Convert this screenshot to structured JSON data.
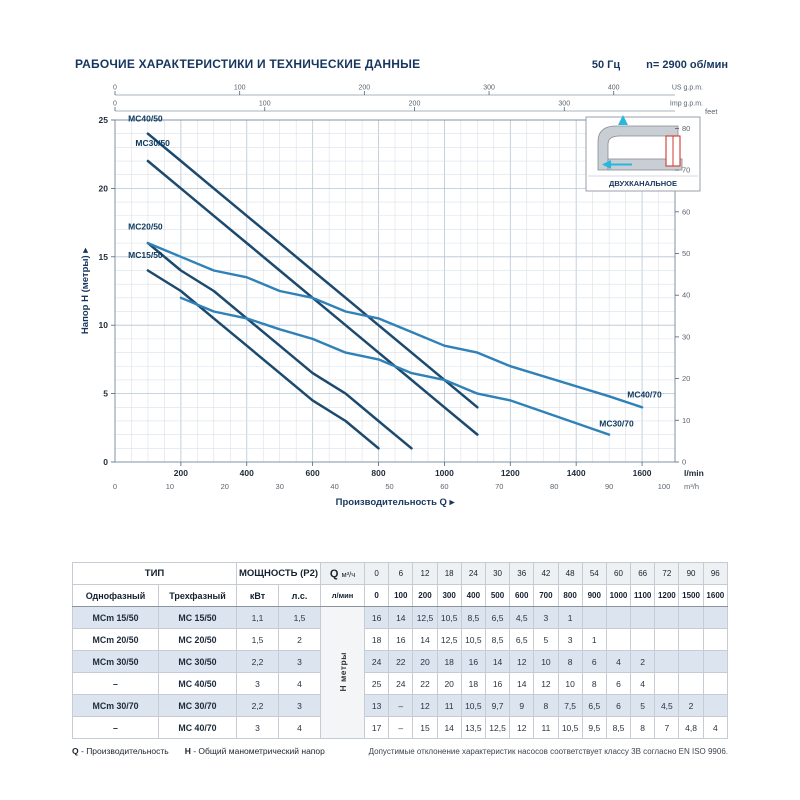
{
  "header": {
    "title": "РАБОЧИЕ ХАРАКТЕРИСТИКИ И ТЕХНИЧЕСКИЕ ДАННЫЕ",
    "frequency": "50 Гц",
    "speed": "n= 2900 об/мин"
  },
  "inset": {
    "label": "ДВУХКАНАЛЬНОЕ"
  },
  "chart_data": {
    "type": "line",
    "x_axis": {
      "label": "Производительность Q  ▸",
      "primary_unit": "l/min",
      "primary_ticks": [
        200,
        400,
        600,
        800,
        1000,
        1200,
        1400,
        1600
      ],
      "primary_max": 1700,
      "secondary_unit": "m³/h",
      "secondary_ticks": [
        0,
        10,
        20,
        30,
        40,
        50,
        60,
        70,
        80,
        90,
        100
      ],
      "us_gpm_unit": "US g.p.m.",
      "us_gpm_ticks": [
        0,
        100,
        200,
        300,
        400
      ],
      "imp_gpm_unit": "Imp g.p.m.",
      "imp_gpm_ticks": [
        0,
        100,
        200,
        300
      ]
    },
    "y_axis": {
      "label": "Напор H (метры)  ▸",
      "ticks": [
        0,
        5,
        10,
        15,
        20,
        25
      ],
      "max": 25,
      "right_unit": "feet",
      "right_ticks": [
        0,
        10,
        20,
        30,
        40,
        50,
        60,
        70,
        80
      ]
    },
    "series": [
      {
        "name": "MC40/50",
        "color": "#1c4a6e",
        "width": 2.5,
        "label": {
          "x": 40,
          "y": 24.9,
          "anchor": "start"
        },
        "points": [
          [
            100,
            24
          ],
          [
            200,
            22
          ],
          [
            300,
            20
          ],
          [
            400,
            18
          ],
          [
            500,
            16
          ],
          [
            600,
            14
          ],
          [
            700,
            12
          ],
          [
            800,
            10
          ],
          [
            900,
            8
          ],
          [
            1000,
            6
          ],
          [
            1100,
            4
          ]
        ]
      },
      {
        "name": "MC30/50",
        "color": "#1c4a6e",
        "width": 2.5,
        "label": {
          "x": 62,
          "y": 23.1,
          "anchor": "start"
        },
        "points": [
          [
            100,
            22
          ],
          [
            200,
            20
          ],
          [
            300,
            18
          ],
          [
            400,
            16
          ],
          [
            500,
            14
          ],
          [
            600,
            12
          ],
          [
            700,
            10
          ],
          [
            800,
            8
          ],
          [
            900,
            6
          ],
          [
            1000,
            4
          ],
          [
            1100,
            2
          ]
        ]
      },
      {
        "name": "MC20/50",
        "color": "#1c4a6e",
        "width": 2.5,
        "label": {
          "x": 40,
          "y": 17.0,
          "anchor": "start"
        },
        "points": [
          [
            100,
            16
          ],
          [
            200,
            14
          ],
          [
            300,
            12.5
          ],
          [
            400,
            10.5
          ],
          [
            500,
            8.5
          ],
          [
            600,
            6.5
          ],
          [
            700,
            5
          ],
          [
            800,
            3
          ],
          [
            900,
            1
          ]
        ]
      },
      {
        "name": "MC15/50",
        "color": "#1c4a6e",
        "width": 2.5,
        "label": {
          "x": 40,
          "y": 14.9,
          "anchor": "start"
        },
        "points": [
          [
            100,
            14
          ],
          [
            200,
            12.5
          ],
          [
            300,
            10.5
          ],
          [
            400,
            8.5
          ],
          [
            500,
            6.5
          ],
          [
            600,
            4.5
          ],
          [
            700,
            3
          ],
          [
            800,
            1
          ]
        ]
      },
      {
        "name": "MC40/70",
        "color": "#2f81b7",
        "width": 2.4,
        "label": {
          "x": 1555,
          "y": 4.7,
          "anchor": "start"
        },
        "points": [
          [
            100,
            16
          ],
          [
            200,
            15
          ],
          [
            300,
            14
          ],
          [
            400,
            13.5
          ],
          [
            500,
            12.5
          ],
          [
            600,
            12
          ],
          [
            700,
            11
          ],
          [
            800,
            10.5
          ],
          [
            900,
            9.5
          ],
          [
            1000,
            8.5
          ],
          [
            1100,
            8
          ],
          [
            1200,
            7
          ],
          [
            1500,
            4.8
          ],
          [
            1600,
            4
          ]
        ]
      },
      {
        "name": "MC30/70",
        "color": "#2f81b7",
        "width": 2.4,
        "label": {
          "x": 1470,
          "y": 2.6,
          "anchor": "start"
        },
        "points": [
          [
            200,
            12
          ],
          [
            300,
            11
          ],
          [
            400,
            10.5
          ],
          [
            500,
            9.7
          ],
          [
            600,
            9
          ],
          [
            700,
            8
          ],
          [
            800,
            7.5
          ],
          [
            900,
            6.5
          ],
          [
            1000,
            6
          ],
          [
            1100,
            5
          ],
          [
            1200,
            4.5
          ],
          [
            1500,
            2
          ]
        ]
      }
    ]
  },
  "table": {
    "header": {
      "type": "ТИП",
      "single": "Однофазный",
      "three": "Трехфазный",
      "power": "МОЩНОСТЬ (P2)",
      "kw": "кВт",
      "hp": "л.с.",
      "q": "Q",
      "m3h": "м³/ч",
      "lmin": "л/мин",
      "h_label": "H  метры",
      "m3h_values": [
        "0",
        "6",
        "12",
        "18",
        "24",
        "30",
        "36",
        "42",
        "48",
        "54",
        "60",
        "66",
        "72",
        "90",
        "96"
      ],
      "lmin_values": [
        "0",
        "100",
        "200",
        "300",
        "400",
        "500",
        "600",
        "700",
        "800",
        "900",
        "1000",
        "1100",
        "1200",
        "1500",
        "1600"
      ]
    },
    "rows": [
      {
        "single": "MCm 15/50",
        "three": "MC 15/50",
        "kw": "1,1",
        "hp": "1,5",
        "h": [
          "16",
          "14",
          "12,5",
          "10,5",
          "8,5",
          "6,5",
          "4,5",
          "3",
          "1",
          "",
          "",
          "",
          "",
          "",
          ""
        ]
      },
      {
        "single": "MCm 20/50",
        "three": "MC 20/50",
        "kw": "1,5",
        "hp": "2",
        "h": [
          "18",
          "16",
          "14",
          "12,5",
          "10,5",
          "8,5",
          "6,5",
          "5",
          "3",
          "1",
          "",
          "",
          "",
          "",
          ""
        ]
      },
      {
        "single": "MCm 30/50",
        "three": "MC 30/50",
        "kw": "2,2",
        "hp": "3",
        "h": [
          "24",
          "22",
          "20",
          "18",
          "16",
          "14",
          "12",
          "10",
          "8",
          "6",
          "4",
          "2",
          "",
          "",
          ""
        ]
      },
      {
        "single": "–",
        "three": "MC 40/50",
        "kw": "3",
        "hp": "4",
        "h": [
          "25",
          "24",
          "22",
          "20",
          "18",
          "16",
          "14",
          "12",
          "10",
          "8",
          "6",
          "4",
          "",
          "",
          ""
        ]
      },
      {
        "single": "MCm 30/70",
        "three": "MC 30/70",
        "kw": "2,2",
        "hp": "3",
        "h": [
          "13",
          "–",
          "12",
          "11",
          "10,5",
          "9,7",
          "9",
          "8",
          "7,5",
          "6,5",
          "6",
          "5",
          "4,5",
          "2",
          ""
        ]
      },
      {
        "single": "–",
        "three": "MC 40/70",
        "kw": "3",
        "hp": "4",
        "h": [
          "17",
          "–",
          "15",
          "14",
          "13,5",
          "12,5",
          "12",
          "11",
          "10,5",
          "9,5",
          "8,5",
          "8",
          "7",
          "4,8",
          "4"
        ]
      }
    ]
  },
  "footer": {
    "items": [
      {
        "label": "Q",
        "text": "- Производительность"
      },
      {
        "label": "H",
        "text": "- Общий манометрический напор"
      }
    ],
    "note": "Допустимые отклонение характеристик насосов соответствует классу 3В согласно EN ISO 9906."
  }
}
